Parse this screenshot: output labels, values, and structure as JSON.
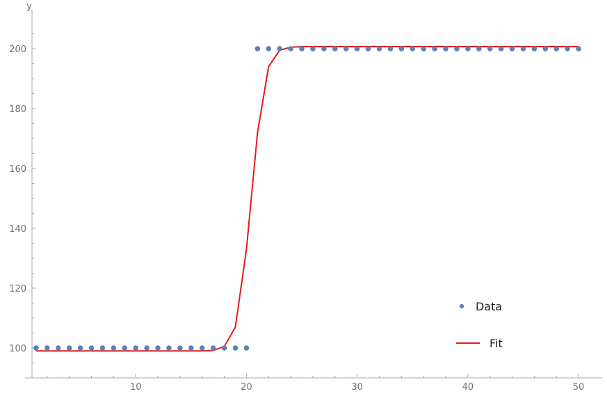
{
  "chart_data": {
    "type": "scatter",
    "title": "",
    "xlabel": "",
    "ylabel": "y",
    "xlim": [
      0,
      51.5
    ],
    "ylim": [
      90,
      210
    ],
    "x_ticks": [
      10,
      20,
      30,
      40,
      50
    ],
    "y_ticks": [
      100,
      120,
      140,
      160,
      180,
      200
    ],
    "grid": false,
    "legend_position": "bottom-right",
    "series": [
      {
        "name": "Data",
        "kind": "points",
        "color": "#5e81b5",
        "x": [
          1,
          2,
          3,
          4,
          5,
          6,
          7,
          8,
          9,
          10,
          11,
          12,
          13,
          14,
          15,
          16,
          17,
          18,
          19,
          20,
          21,
          22,
          23,
          24,
          25,
          26,
          27,
          28,
          29,
          30,
          31,
          32,
          33,
          34,
          35,
          36,
          37,
          38,
          39,
          40,
          41,
          42,
          43,
          44,
          45,
          46,
          47,
          48,
          49,
          50
        ],
        "values": [
          100,
          100,
          100,
          100,
          100,
          100,
          100,
          100,
          100,
          100,
          100,
          100,
          100,
          100,
          100,
          100,
          100,
          100,
          100,
          100,
          200,
          200,
          200,
          200,
          200,
          200,
          200,
          200,
          200,
          200,
          200,
          200,
          200,
          200,
          200,
          200,
          200,
          200,
          200,
          200,
          200,
          200,
          200,
          200,
          200,
          200,
          200,
          200,
          200,
          200
        ]
      },
      {
        "name": "Fit",
        "kind": "line",
        "color": "#e8191a",
        "x": [
          1,
          2,
          3,
          4,
          5,
          6,
          7,
          8,
          9,
          10,
          11,
          12,
          13,
          14,
          15,
          16,
          17,
          18,
          19,
          20,
          21,
          22,
          23,
          24,
          25,
          26,
          27,
          28,
          29,
          30,
          31,
          32,
          33,
          34,
          35,
          36,
          37,
          38,
          39,
          40,
          41,
          42,
          43,
          44,
          45,
          46,
          47,
          48,
          49,
          50
        ],
        "values": [
          99,
          99,
          99,
          99,
          99,
          99,
          99,
          99,
          99,
          99,
          99,
          99,
          99,
          99,
          99,
          99,
          99.2,
          100.5,
          107,
          133,
          172,
          194,
          199.5,
          200.5,
          200.7,
          200.7,
          200.7,
          200.7,
          200.7,
          200.7,
          200.7,
          200.7,
          200.7,
          200.7,
          200.7,
          200.7,
          200.7,
          200.7,
          200.7,
          200.7,
          200.7,
          200.7,
          200.7,
          200.7,
          200.7,
          200.7,
          200.7,
          200.7,
          200.7,
          200.7
        ]
      }
    ]
  }
}
